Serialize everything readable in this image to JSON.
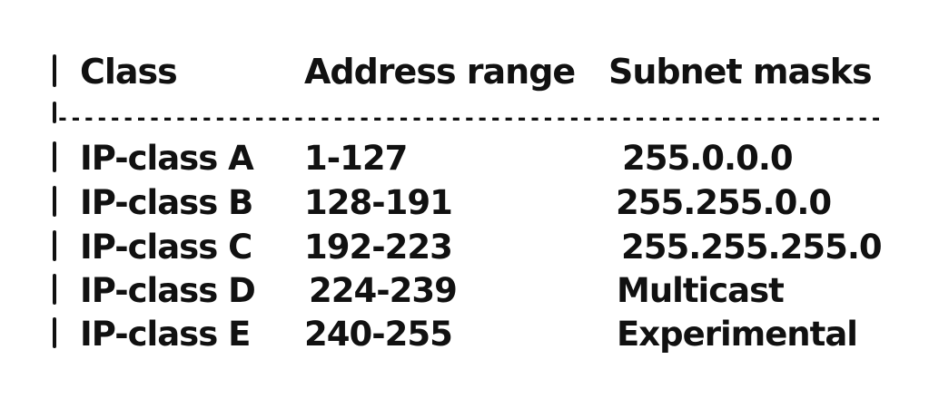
{
  "table": {
    "headers": {
      "class": "Class",
      "range": "Address range",
      "mask": "Subnet masks"
    },
    "separator": "----------------------------------------------------------------------------",
    "rows": [
      {
        "class": "IP-class A",
        "range": "1-127",
        "mask": "255.0.0.0"
      },
      {
        "class": "IP-class B",
        "range": "128-191",
        "mask": "255.255.0.0"
      },
      {
        "class": "IP-class C",
        "range": "192-223",
        "mask": "255.255.255.0"
      },
      {
        "class": "IP-class D",
        "range": "224-239",
        "mask": "Multicast"
      },
      {
        "class": "IP-class E",
        "range": "240-255",
        "mask": "Experimental"
      }
    ]
  },
  "colors": {
    "ink": "#111111",
    "background": "#ffffff"
  }
}
